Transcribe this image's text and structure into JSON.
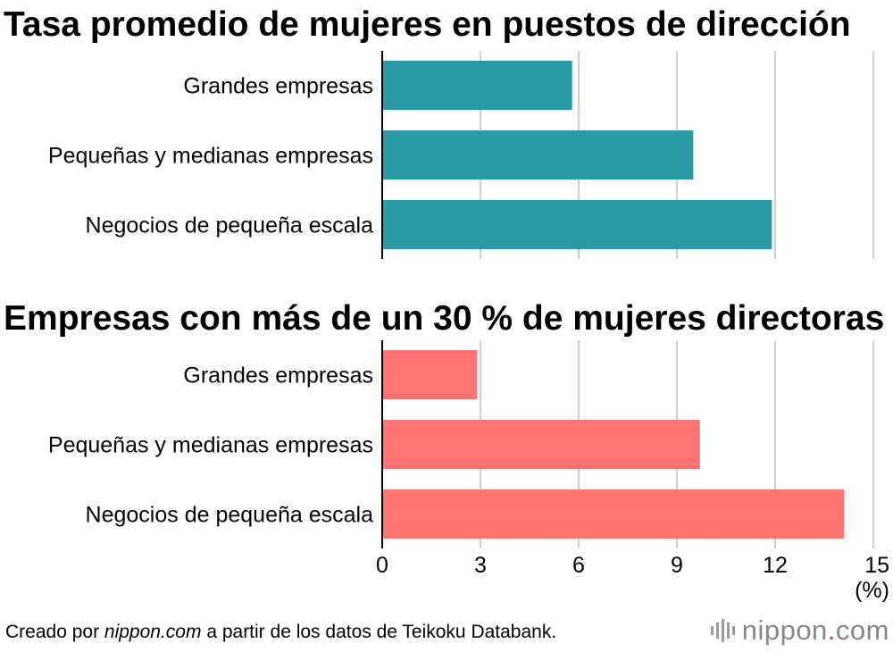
{
  "chart_data": [
    {
      "type": "bar",
      "orientation": "horizontal",
      "title": "Tasa promedio de mujeres en puestos de dirección",
      "categories": [
        "Grandes empresas",
        "Pequeñas y medianas empresas",
        "Negocios de pequeña escala"
      ],
      "values": [
        5.8,
        9.5,
        11.9
      ],
      "color": "#2a9aa5",
      "xlim": [
        0,
        15
      ],
      "grid": true
    },
    {
      "type": "bar",
      "orientation": "horizontal",
      "title": "Empresas con más de un 30 % de mujeres directoras",
      "categories": [
        "Grandes empresas",
        "Pequeñas y medianas empresas",
        "Negocios de pequeña escala"
      ],
      "values": [
        2.9,
        9.7,
        14.1
      ],
      "color": "#ff7373",
      "xlim": [
        0,
        15
      ],
      "xticks": [
        "0",
        "3",
        "6",
        "9",
        "12",
        "15"
      ],
      "xunit": "(%)",
      "grid": true
    }
  ],
  "footer": {
    "prefix": "Creado por ",
    "source_name": "nippon.com",
    "suffix": " a partir de los datos de Teikoku Databank."
  },
  "logo": {
    "name": "nippon",
    "dot": ".",
    "tld": "com",
    "color": "#888888",
    "accent": "#e8383d"
  }
}
